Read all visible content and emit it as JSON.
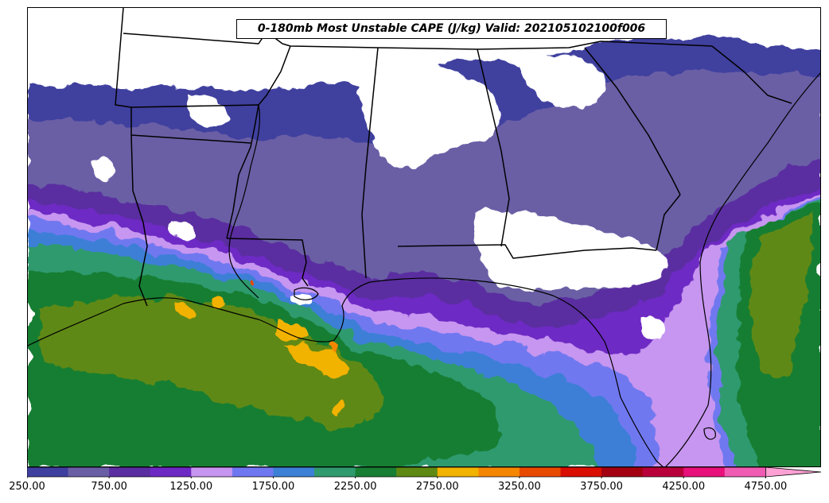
{
  "title": "0-180mb Most Unstable CAPE (J/kg) Valid: 202105102100f006",
  "colorbar": {
    "bins": [
      250,
      500,
      750,
      1000,
      1250,
      1500,
      1750,
      2000,
      2250,
      2500,
      2750,
      3000,
      3250,
      3500,
      3750,
      4000,
      4250,
      4500,
      4750
    ],
    "colors": [
      "#3f3f9f",
      "#6a5fa5",
      "#5a2ea0",
      "#6e29c4",
      "#c796f0",
      "#6f78f0",
      "#3c7fd6",
      "#2f9a6e",
      "#177e33",
      "#5e8912",
      "#f2b200",
      "#f58700",
      "#e84a00",
      "#d90e00",
      "#a30012",
      "#b8003a",
      "#e8107a",
      "#f05cb3",
      "#fda0d3"
    ],
    "tick_labels": [
      "250.00",
      "750.00",
      "1250.00",
      "1750.00",
      "2250.00",
      "2750.00",
      "3250.00",
      "3750.00",
      "4250.00",
      "4750.00"
    ],
    "extend": "max"
  },
  "map": {
    "background": "#ffffff",
    "boundary_color": "#000000",
    "region": "Southeastern United States and Gulf of Mexico"
  }
}
